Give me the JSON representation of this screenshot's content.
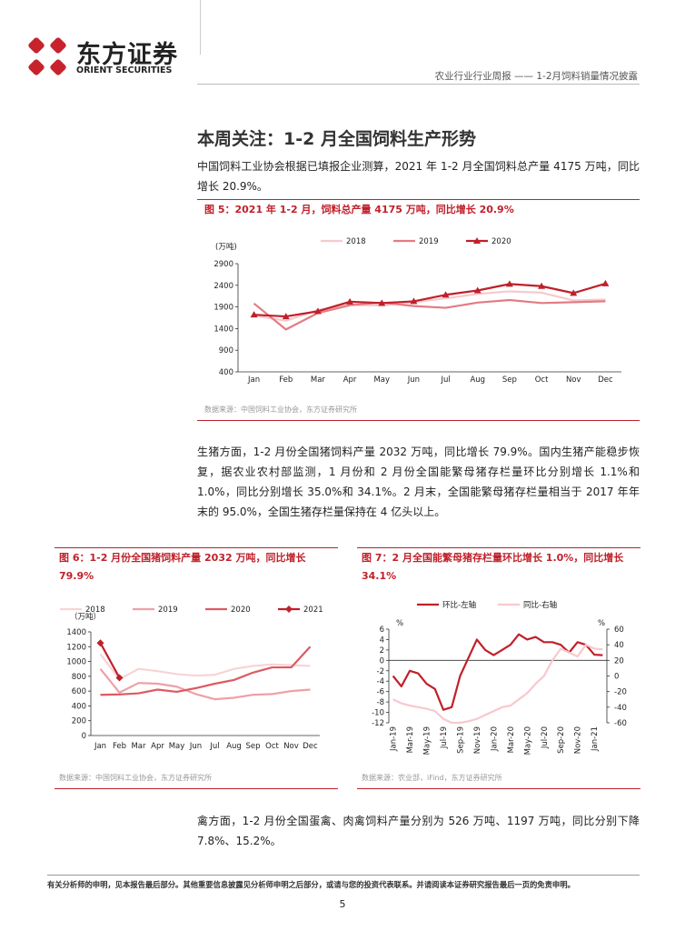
{
  "header": {
    "brand_cn": "东方证券",
    "brand_en": "ORIENT SECURITIES",
    "report": "农业行业行业周报 —— 1-2月饲料销量情况披露"
  },
  "section_title": "本周关注：1-2 月全国饲料生产形势",
  "paragraphs": [
    "中国饲料工业协会根据已填报企业测算，2021 年 1-2 月全国饲料总产量 4175 万吨，同比增长 20.9%。",
    "生猪方面，1-2 月份全国猪饲料产量 2032 万吨，同比增长 79.9%。国内生猪产能稳步恢复，据农业农村部监测，1 月份和 2 月份全国能繁母猪存栏量环比分别增长 1.1%和 1.0%，同比分别增长 35.0%和 34.1%。2 月末，全国能繁母猪存栏量相当于 2017 年年末的 95.0%，全国生猪存栏量保持在 4 亿头以上。",
    "禽方面，1-2 月份全国蛋禽、肉禽饲料产量分别为 526 万吨、1197 万吨，同比分别下降 7.8%、15.2%。"
  ],
  "figures": [
    {
      "title": "图 5：2021 年 1-2 月，饲料总产量 4175 万吨，同比增长 20.9%",
      "source": "数据来源：中国饲料工业协会，东方证券研究所"
    },
    {
      "title": "图 6：1-2 月份全国猪饲料产量 2032 万吨，同比增长 79.9%",
      "source": "数据来源：中国饲料工业协会，东方证券研究所"
    },
    {
      "title": "图 7：2 月全国能繁母猪存栏量环比增长 1.0%，同比增长 34.1%",
      "source": "数据来源：农业部，iFind，东方证券研究所"
    }
  ],
  "footer": {
    "disclaimer": "有关分析师的申明，见本报告最后部分。其他重要信息披露见分析师申明之后部分，或请与您的投资代表联系。并请阅读本证券研究报告最后一页的免责申明。",
    "page": "5"
  },
  "chart_data": [
    {
      "type": "line",
      "y_unit": "(万吨)",
      "categories": [
        "Jan",
        "Feb",
        "Mar",
        "Apr",
        "May",
        "Jun",
        "Jul",
        "Aug",
        "Sep",
        "Oct",
        "Nov",
        "Dec"
      ],
      "series": [
        {
          "name": "2018",
          "color": "#f6c9cd",
          "values": [
            1700,
            1580,
            1830,
            1950,
            1930,
            2010,
            2100,
            2200,
            2260,
            2230,
            2050,
            2070
          ]
        },
        {
          "name": "2019",
          "color": "#e27c83",
          "values": [
            1980,
            1380,
            1760,
            1940,
            2000,
            1920,
            1880,
            2000,
            2060,
            1990,
            2010,
            2030
          ]
        },
        {
          "name": "2020",
          "color": "#c0202a",
          "marker": "triangle",
          "values": [
            1720,
            1680,
            1800,
            2020,
            1990,
            2030,
            2180,
            2280,
            2430,
            2380,
            2220,
            2440
          ]
        }
      ],
      "ylim": [
        400,
        2900
      ],
      "yticks": [
        400,
        900,
        1400,
        1900,
        2400,
        2900
      ],
      "legend": "top"
    },
    {
      "type": "line",
      "y_unit": "（万吨）",
      "categories": [
        "Jan",
        "Feb",
        "Mar",
        "Apr",
        "May",
        "Jun",
        "Jul",
        "Aug",
        "Sep",
        "Oct",
        "Nov",
        "Dec"
      ],
      "series": [
        {
          "name": "2018",
          "color": "#f8d3d6",
          "values": [
            1100,
            760,
            900,
            870,
            830,
            810,
            820,
            900,
            940,
            960,
            950,
            940
          ]
        },
        {
          "name": "2019",
          "color": "#eea0a6",
          "values": [
            900,
            580,
            710,
            700,
            660,
            560,
            490,
            510,
            550,
            560,
            600,
            620
          ]
        },
        {
          "name": "2020",
          "color": "#dc5a62",
          "values": [
            550,
            555,
            570,
            620,
            590,
            640,
            700,
            750,
            850,
            920,
            920,
            1200
          ]
        },
        {
          "name": "2021",
          "color": "#c0202a",
          "marker": "diamond",
          "values": [
            1250,
            780,
            null,
            null,
            null,
            null,
            null,
            null,
            null,
            null,
            null,
            null
          ]
        }
      ],
      "ylim": [
        0,
        1400
      ],
      "yticks": [
        0,
        200,
        400,
        600,
        800,
        1000,
        1200,
        1400
      ],
      "legend": "top"
    },
    {
      "type": "line",
      "y_unit": "%",
      "y2_unit": "%",
      "categories": [
        "Jan-19",
        null,
        "Mar-19",
        null,
        "May-19",
        null,
        "Jul-19",
        null,
        "Sep-19",
        null,
        "Nov-19",
        null,
        "Jan-20",
        null,
        "Mar-20",
        null,
        "May-20",
        null,
        "Jul-20",
        null,
        "Sep-20",
        null,
        "Nov-20",
        null,
        "Jan-21",
        null
      ],
      "series": [
        {
          "name": "环比-左轴",
          "color": "#c0202a",
          "values": [
            -3,
            -5,
            -2,
            -2.5,
            -4.5,
            -5.5,
            -9.5,
            -9,
            -3,
            0.5,
            4,
            2,
            1,
            2,
            3,
            5,
            4,
            4.5,
            3.5,
            3.5,
            3,
            1.5,
            3.5,
            3,
            1.1,
            1.0
          ]
        },
        {
          "name": "同比-右轴",
          "color": "#f6c9cd",
          "axis": "y2",
          "values": [
            -30,
            -35,
            -38,
            -40,
            -42,
            -45,
            -55,
            -60,
            -60,
            -58,
            -55,
            -50,
            -45,
            -40,
            -38,
            -30,
            -22,
            -10,
            0,
            20,
            35,
            30,
            25,
            40,
            35.0,
            34.1
          ]
        }
      ],
      "ylim": [
        -12,
        6
      ],
      "yticks": [
        -12,
        -10,
        -8,
        -6,
        -4,
        -2,
        0,
        2,
        4,
        6
      ],
      "y2lim": [
        -60,
        60
      ],
      "y2ticks": [
        -60,
        -40,
        -20,
        0,
        20,
        40,
        60
      ],
      "legend": "top"
    }
  ]
}
